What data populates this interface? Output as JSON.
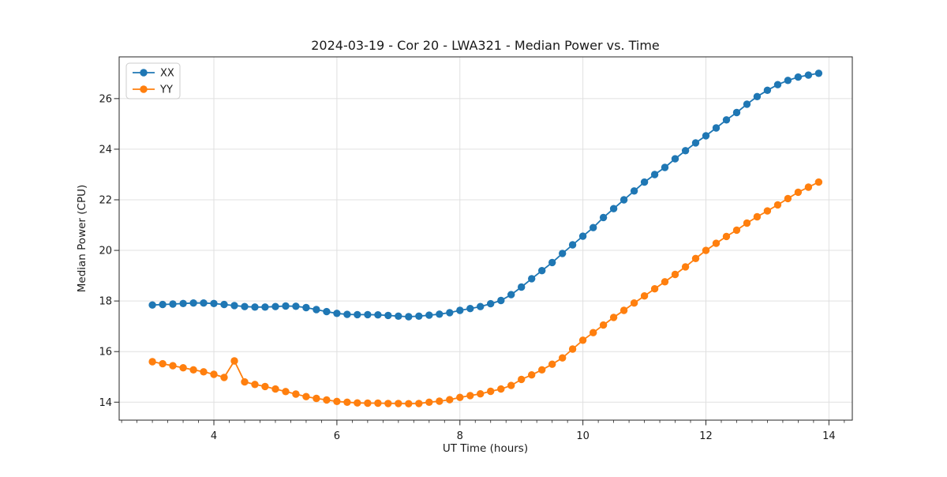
{
  "chart_data": {
    "type": "line",
    "title": "2024-03-19 - Cor 20 - LWA321 - Median Power vs. Time",
    "xlabel": "UT Time (hours)",
    "ylabel": "Median Power (CPU)",
    "xlim": [
      2.46,
      14.38
    ],
    "ylim": [
      13.29,
      27.65
    ],
    "x_ticks": [
      4,
      6,
      8,
      10,
      12,
      14
    ],
    "y_ticks": [
      14,
      16,
      18,
      20,
      22,
      24,
      26
    ],
    "x_minor_tick_step": 0.25,
    "grid": true,
    "legend_position": "upper left",
    "background": "#ffffff",
    "grid_color": "#e0e0e0",
    "spine_color": "#262626",
    "x": [
      3.0,
      3.167,
      3.333,
      3.5,
      3.667,
      3.833,
      4.0,
      4.167,
      4.333,
      4.5,
      4.667,
      4.833,
      5.0,
      5.167,
      5.333,
      5.5,
      5.667,
      5.833,
      6.0,
      6.167,
      6.333,
      6.5,
      6.667,
      6.833,
      7.0,
      7.167,
      7.333,
      7.5,
      7.667,
      7.833,
      8.0,
      8.167,
      8.333,
      8.5,
      8.667,
      8.833,
      9.0,
      9.167,
      9.333,
      9.5,
      9.667,
      9.833,
      10.0,
      10.167,
      10.333,
      10.5,
      10.667,
      10.833,
      11.0,
      11.167,
      11.333,
      11.5,
      11.667,
      11.833,
      12.0,
      12.167,
      12.333,
      12.5,
      12.667,
      12.833,
      13.0,
      13.167,
      13.333,
      13.5,
      13.667,
      13.833
    ],
    "series": [
      {
        "name": "XX",
        "color": "#1f77b4",
        "marker": "circle",
        "values": [
          17.84,
          17.86,
          17.88,
          17.9,
          17.92,
          17.92,
          17.9,
          17.86,
          17.82,
          17.78,
          17.76,
          17.76,
          17.78,
          17.8,
          17.79,
          17.74,
          17.66,
          17.58,
          17.51,
          17.47,
          17.46,
          17.46,
          17.45,
          17.43,
          17.4,
          17.38,
          17.4,
          17.44,
          17.48,
          17.54,
          17.63,
          17.7,
          17.78,
          17.89,
          18.02,
          18.25,
          18.55,
          18.88,
          19.2,
          19.52,
          19.88,
          20.22,
          20.56,
          20.9,
          21.3,
          21.65,
          22.0,
          22.35,
          22.7,
          23.0,
          23.28,
          23.62,
          23.94,
          24.25,
          24.53,
          24.84,
          25.16,
          25.45,
          25.78,
          26.08,
          26.33,
          26.55,
          26.72,
          26.85,
          26.93,
          27.0
        ]
      },
      {
        "name": "YY",
        "color": "#ff7f0e",
        "marker": "circle",
        "values": [
          15.6,
          15.52,
          15.44,
          15.36,
          15.28,
          15.2,
          15.1,
          14.98,
          15.63,
          14.8,
          14.7,
          14.62,
          14.52,
          14.42,
          14.32,
          14.22,
          14.15,
          14.09,
          14.03,
          14.0,
          13.97,
          13.96,
          13.96,
          13.95,
          13.95,
          13.94,
          13.95,
          14.0,
          14.04,
          14.1,
          14.19,
          14.26,
          14.33,
          14.43,
          14.52,
          14.66,
          14.9,
          15.08,
          15.28,
          15.5,
          15.75,
          16.1,
          16.45,
          16.75,
          17.05,
          17.35,
          17.63,
          17.92,
          18.2,
          18.48,
          18.76,
          19.05,
          19.35,
          19.68,
          20.0,
          20.28,
          20.55,
          20.8,
          21.08,
          21.33,
          21.56,
          21.8,
          22.05,
          22.3,
          22.5,
          22.7
        ]
      }
    ]
  }
}
